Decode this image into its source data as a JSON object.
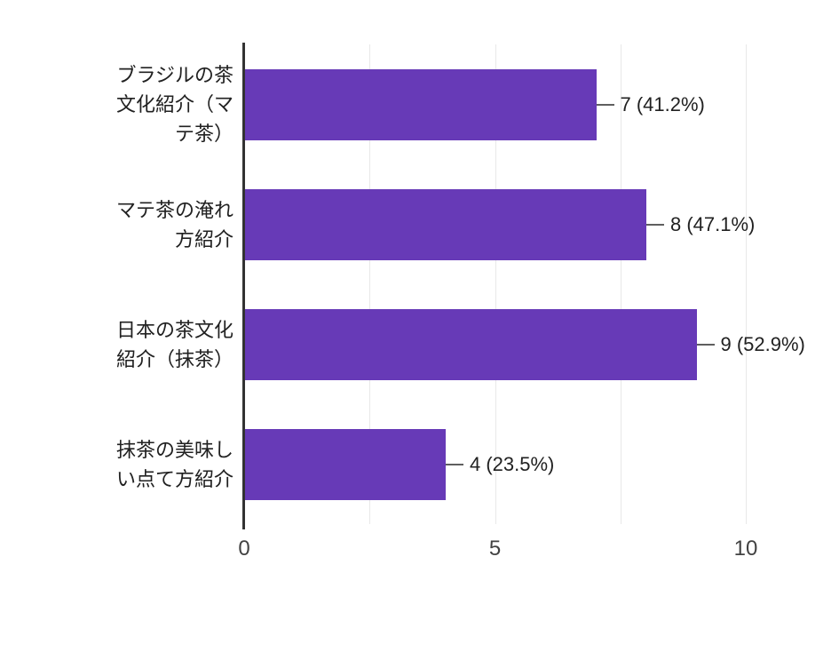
{
  "chart_data": {
    "type": "bar",
    "orientation": "horizontal",
    "categories": [
      "ブラジルの茶文化紹介（マテ茶）",
      "マテ茶の淹れ方紹介",
      "日本の茶文化紹介（抹茶）",
      "抹茶の美味しい点て方紹介"
    ],
    "category_label_lines": [
      [
        "ブラジルの茶",
        "文化紹介（マ",
        "テ茶）"
      ],
      [
        "マテ茶の淹れ",
        "方紹介"
      ],
      [
        "日本の茶文化",
        "紹介（抹茶）"
      ],
      [
        "抹茶の美味し",
        "い点て方紹介"
      ]
    ],
    "values": [
      7,
      8,
      9,
      4
    ],
    "value_labels": [
      "7 (41.2%)",
      "8 (47.1%)",
      "9 (52.9%)",
      "4 (23.5%)"
    ],
    "x_ticks": [
      "0",
      "5",
      "10"
    ],
    "x_tick_values": [
      0,
      5,
      10
    ],
    "xlim": [
      0,
      10
    ],
    "gridline_values": [
      2.5,
      5,
      7.5,
      10
    ],
    "legend": "none",
    "grid": "vertical-only",
    "colors": {
      "bar": "#673ab7",
      "axis": "#333333",
      "gridline": "#e8e8e8",
      "text": "#212121",
      "tick_text": "#424242",
      "connector": "#5f5f5f",
      "background": "#ffffff"
    }
  }
}
